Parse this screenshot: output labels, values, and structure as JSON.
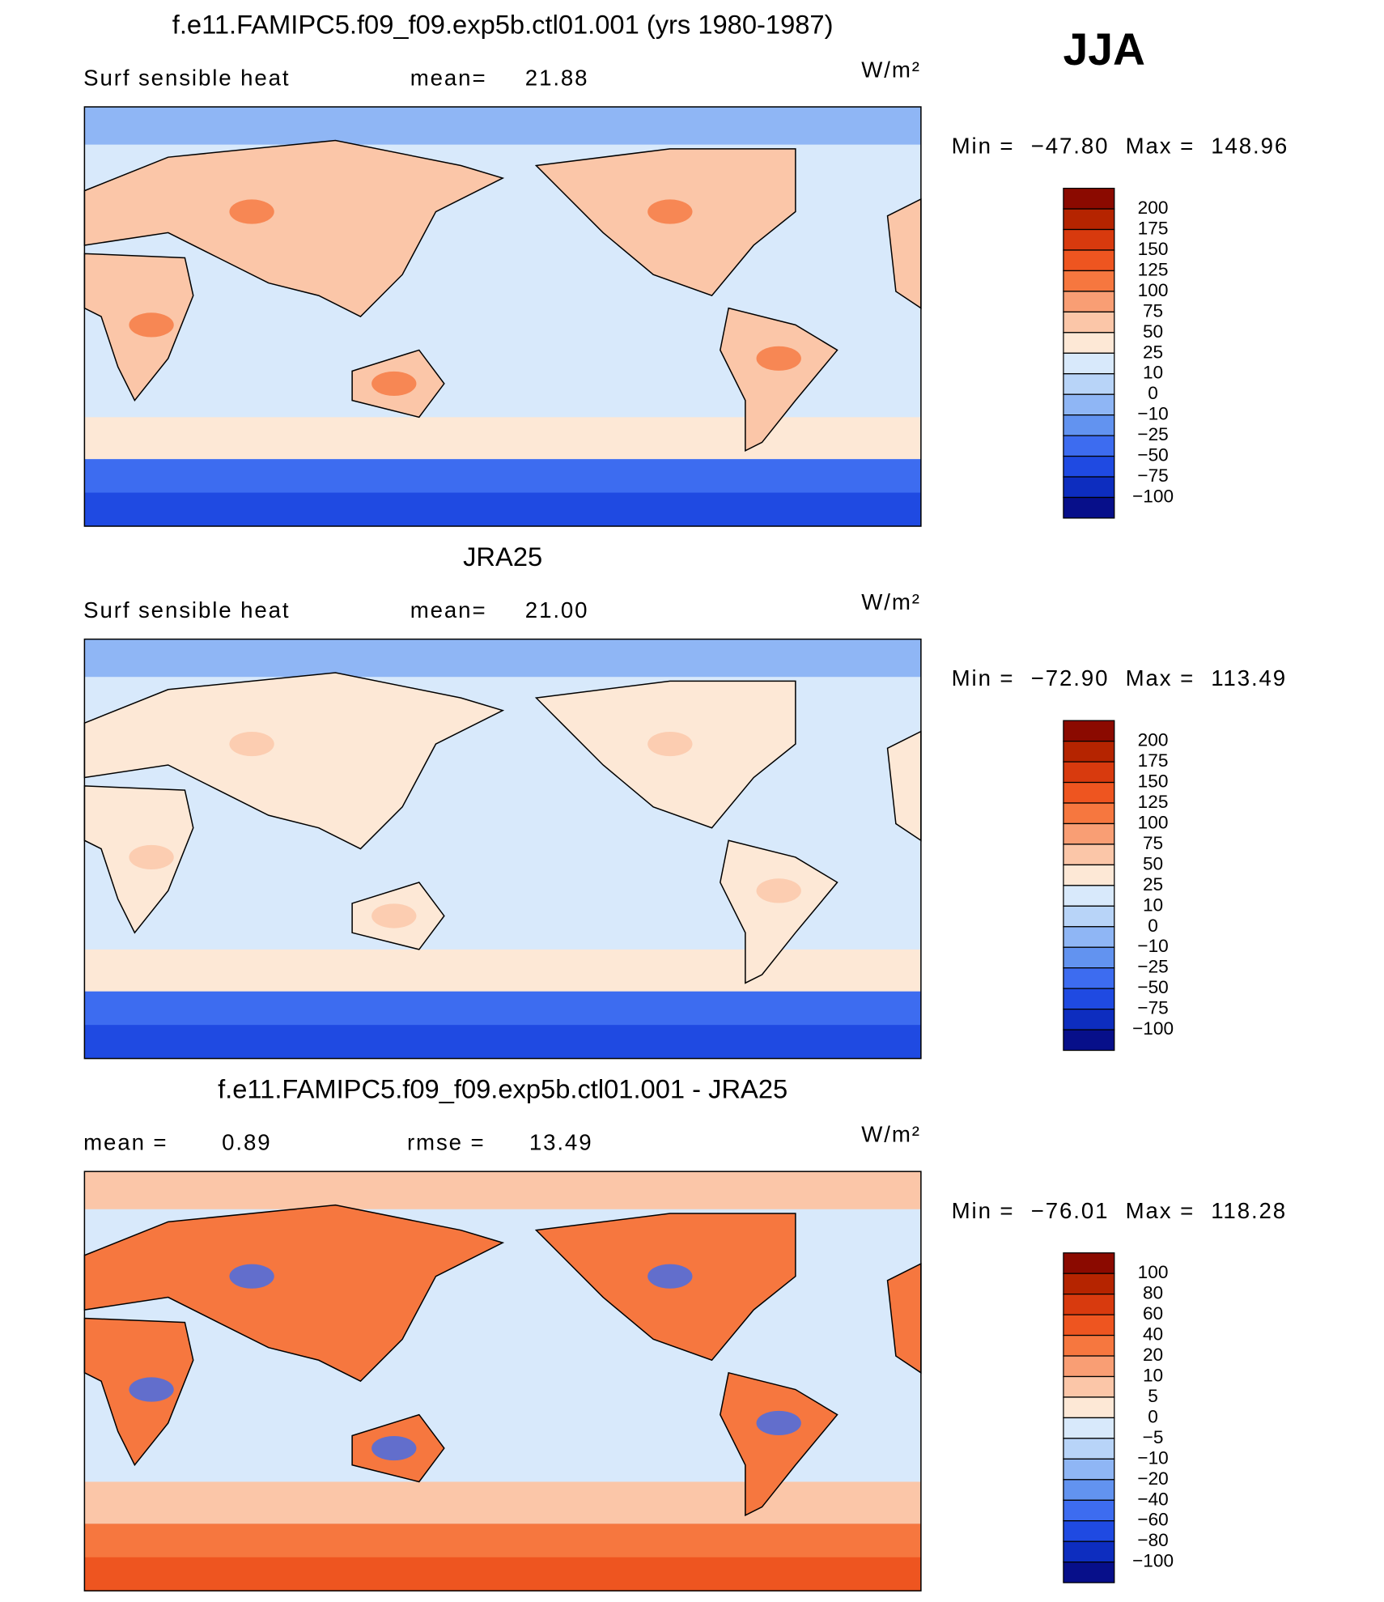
{
  "header": {
    "season": "JJA"
  },
  "panels": [
    {
      "title": "f.e11.FAMIPC5.f09_f09.exp5b.ctl01.001 (yrs 1980-1987)",
      "stats": [
        "Surf sensible heat",
        "mean=",
        "21.88"
      ],
      "units": "W/m²",
      "min_label": "Min =",
      "min": "−47.80",
      "max_label": "Max =",
      "max": "148.96",
      "colorbar": {
        "labels": [
          "200",
          "175",
          "150",
          "125",
          "100",
          "75",
          "50",
          "25",
          "10",
          "0",
          "−10",
          "−25",
          "−50",
          "−75",
          "−100"
        ],
        "colors": [
          "#8b0a00",
          "#b52400",
          "#d83a0e",
          "#ee5520",
          "#f6773f",
          "#f99e74",
          "#fbc6a8",
          "#fde8d6",
          "#d8e9fb",
          "#b8d4f8",
          "#8fb6f5",
          "#6293f0",
          "#3d6cf0",
          "#1f4ae2",
          "#0d2dbf",
          "#070f8a"
        ]
      }
    },
    {
      "title": "JRA25",
      "stats": [
        "Surf sensible heat",
        "mean=",
        "21.00"
      ],
      "units": "W/m²",
      "min_label": "Min =",
      "min": "−72.90",
      "max_label": "Max =",
      "max": "113.49",
      "colorbar": {
        "labels": [
          "200",
          "175",
          "150",
          "125",
          "100",
          "75",
          "50",
          "25",
          "10",
          "0",
          "−10",
          "−25",
          "−50",
          "−75",
          "−100"
        ],
        "colors": [
          "#8b0a00",
          "#b52400",
          "#d83a0e",
          "#ee5520",
          "#f6773f",
          "#f99e74",
          "#fbc6a8",
          "#fde8d6",
          "#d8e9fb",
          "#b8d4f8",
          "#8fb6f5",
          "#6293f0",
          "#3d6cf0",
          "#1f4ae2",
          "#0d2dbf",
          "#070f8a"
        ]
      }
    },
    {
      "title": "f.e11.FAMIPC5.f09_f09.exp5b.ctl01.001 - JRA25",
      "stats": [
        "mean =",
        "0.89",
        "rmse =",
        "13.49"
      ],
      "units": "W/m²",
      "min_label": "Min =",
      "min": "−76.01",
      "max_label": "Max =",
      "max": "118.28",
      "colorbar": {
        "labels": [
          "100",
          "80",
          "60",
          "40",
          "20",
          "10",
          "5",
          "0",
          "−5",
          "−10",
          "−20",
          "−40",
          "−60",
          "−80",
          "−100"
        ],
        "colors": [
          "#8b0a00",
          "#b52400",
          "#d83a0e",
          "#ee5520",
          "#f6773f",
          "#f99e74",
          "#fbc6a8",
          "#fde8d6",
          "#d8e9fb",
          "#b8d4f8",
          "#8fb6f5",
          "#6293f0",
          "#3d6cf0",
          "#1f4ae2",
          "#0d2dbf",
          "#070f8a"
        ]
      }
    }
  ]
}
